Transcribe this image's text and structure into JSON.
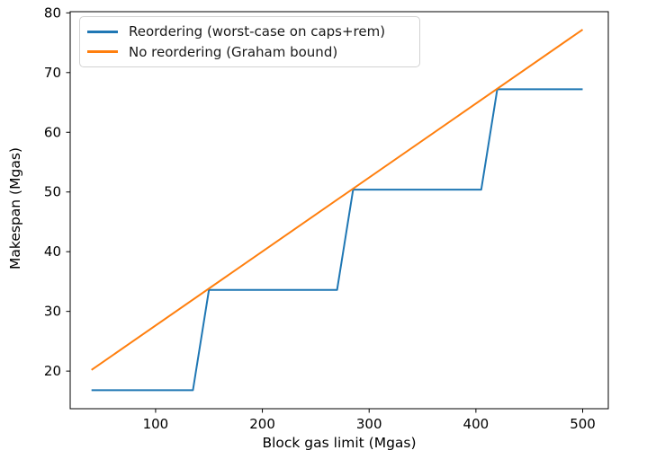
{
  "chart_data": {
    "type": "line",
    "title": "",
    "xlabel": "Block gas limit (Mgas)",
    "ylabel": "Makespan (Mgas)",
    "xlim": [
      20,
      524
    ],
    "ylim": [
      13.7,
      80.2
    ],
    "x_ticks": [
      100,
      200,
      300,
      400,
      500
    ],
    "y_ticks": [
      20,
      30,
      40,
      50,
      60,
      70,
      80
    ],
    "grid": false,
    "legend": {
      "position": "upper-left",
      "border_color": "#d2d2d2",
      "background": "#ffffff"
    },
    "axis_color": "#000000",
    "text_color": "#000000",
    "series": [
      {
        "id": "reordering",
        "name": "Reordering (worst-case on caps+rem)",
        "color": "#1f77b4",
        "shape": "step",
        "points": [
          [
            40,
            16.8
          ],
          [
            135,
            16.8
          ],
          [
            150,
            33.6
          ],
          [
            270,
            33.6
          ],
          [
            285,
            50.4
          ],
          [
            405,
            50.4
          ],
          [
            420,
            67.2
          ],
          [
            500,
            67.2
          ]
        ]
      },
      {
        "id": "no-reordering",
        "name": "No reordering (Graham bound)",
        "color": "#ff7f0e",
        "shape": "linear",
        "points": [
          [
            40,
            20.2
          ],
          [
            500,
            77.2
          ]
        ]
      }
    ]
  }
}
